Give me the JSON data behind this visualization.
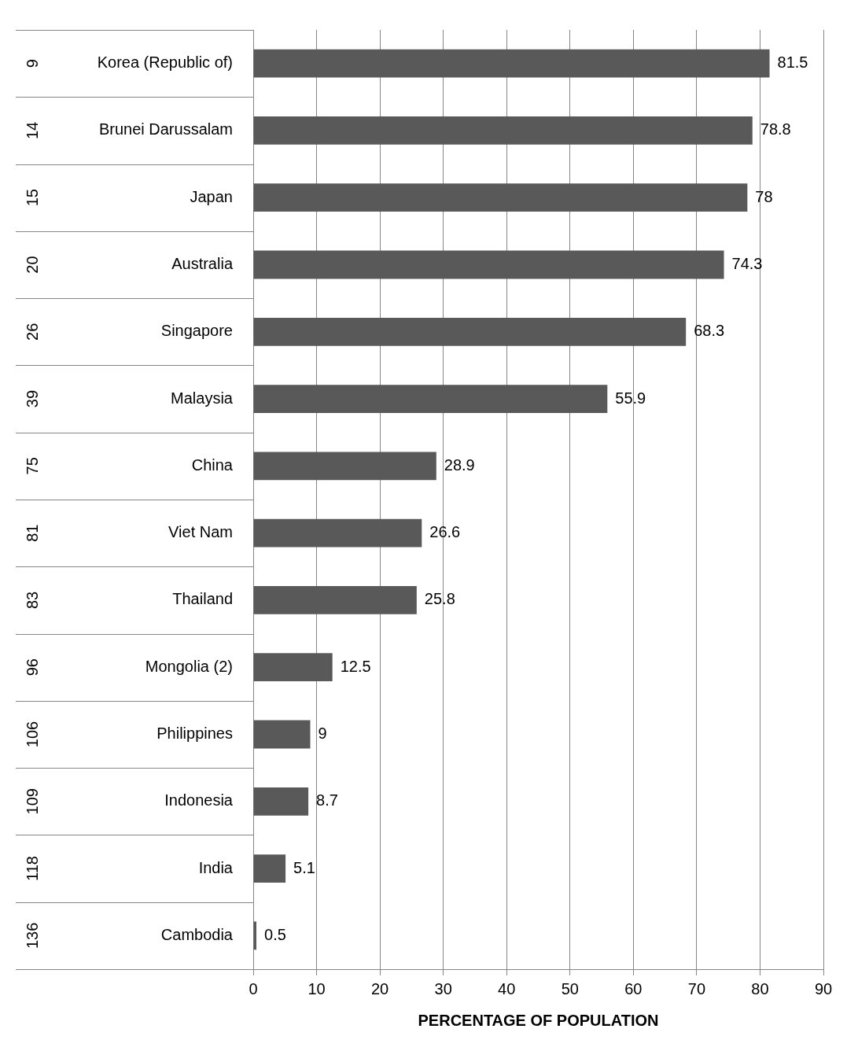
{
  "chart_data": {
    "type": "bar",
    "orientation": "horizontal",
    "xlabel": "PERCENTAGE OF POPULATION",
    "categories": [
      "Korea (Republic of)",
      "Brunei Darussalam",
      "Japan",
      "Australia",
      "Singapore",
      "Malaysia",
      "China",
      "Viet Nam",
      "Thailand",
      "Mongolia (2)",
      "Philippines",
      "Indonesia",
      "India",
      "Cambodia"
    ],
    "values": [
      81.5,
      78.8,
      78,
      74.3,
      68.3,
      55.9,
      28.9,
      26.6,
      25.8,
      12.5,
      9,
      8.7,
      5.1,
      0.5
    ],
    "color": "#595959",
    "xlim": [
      0,
      90
    ],
    "xticks": [
      0,
      10,
      20,
      30,
      40,
      50,
      60,
      70,
      80,
      90
    ],
    "grid": "x",
    "data_labels": true,
    "annotations": [
      "9",
      "14",
      "15",
      "20",
      "26",
      "39",
      "75",
      "81",
      "83",
      "96",
      "106",
      "109",
      "118",
      "136"
    ]
  }
}
